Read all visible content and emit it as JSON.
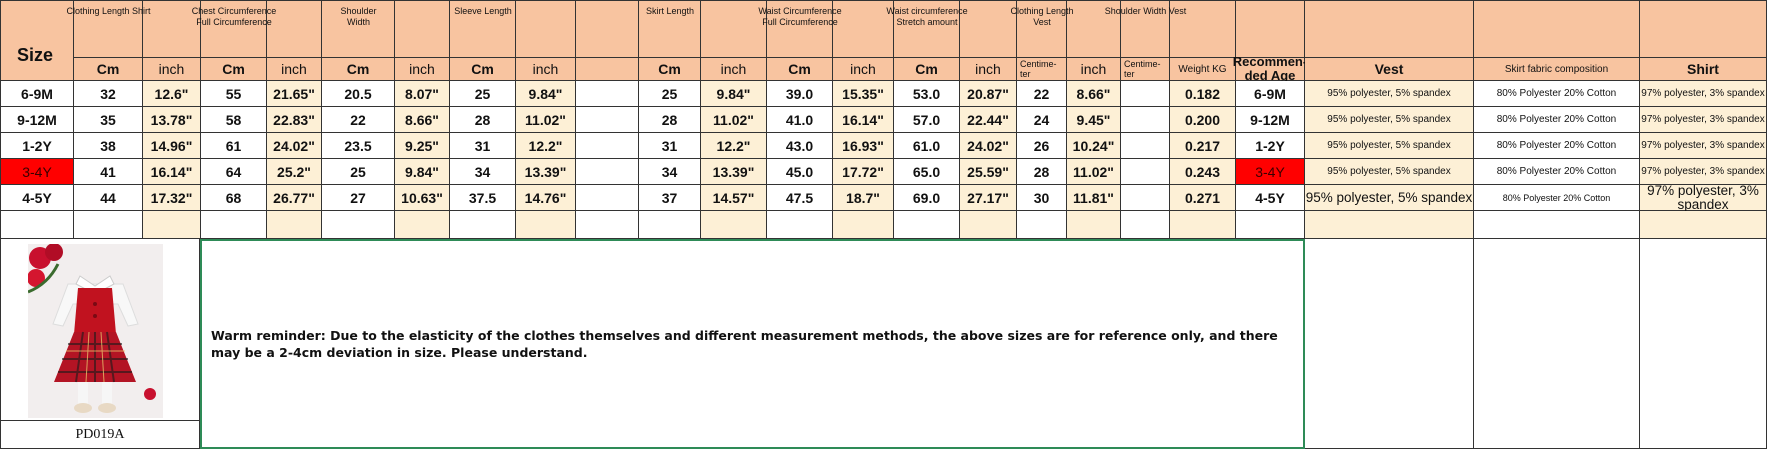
{
  "header": {
    "size": "Size",
    "groups": [
      null,
      [
        "Clothing Length Shirt"
      ],
      null,
      [
        "Chest Circumference",
        "Full Circumference"
      ],
      null,
      [
        "Shoulder",
        "Width"
      ],
      null,
      [
        "Sleeve Length"
      ],
      null,
      null,
      [
        "Skirt Length"
      ],
      null,
      [
        "Waist Circumference",
        "Full Circumference"
      ],
      null,
      [
        "Waist circumference",
        "Stretch amount"
      ],
      null,
      [
        "Clothing Length",
        "Vest"
      ],
      null,
      [
        "Shoulder Width Vest"
      ],
      null,
      null,
      null,
      null,
      null
    ],
    "units": [
      null,
      "Cm",
      "inch",
      "Cm",
      "inch",
      "Cm",
      "inch",
      "Cm",
      "inch",
      null,
      "Cm",
      "inch",
      "Cm",
      "inch",
      "Cm",
      "inch",
      "Centime-ter",
      "inch",
      "Centime-ter",
      "Weight KG",
      "Recommen-ded Age",
      "Vest",
      "Skirt fabric composition",
      "Shirt"
    ]
  },
  "table": {
    "rows": [
      [
        "6-9M",
        "32",
        "12.6\"",
        "55",
        "21.65\"",
        "20.5",
        "8.07\"",
        "25",
        "9.84\"",
        null,
        "25",
        "9.84\"",
        "39.0",
        "15.35\"",
        "53.0",
        "20.87\"",
        "22",
        "8.66\"",
        null,
        "0.182",
        "6-9M",
        "95% polyester, 5% spandex",
        "80% Polyester 20% Cotton",
        "97% polyester, 3% spandex"
      ],
      [
        "9-12M",
        "35",
        "13.78\"",
        "58",
        "22.83\"",
        "22",
        "8.66\"",
        "28",
        "11.02\"",
        null,
        "28",
        "11.02\"",
        "41.0",
        "16.14\"",
        "57.0",
        "22.44\"",
        "24",
        "9.45\"",
        null,
        "0.200",
        "9-12M",
        "95% polyester, 5% spandex",
        "80% Polyester 20% Cotton",
        "97% polyester, 3% spandex"
      ],
      [
        "1-2Y",
        "38",
        "14.96\"",
        "61",
        "24.02\"",
        "23.5",
        "9.25\"",
        "31",
        "12.2\"",
        null,
        "31",
        "12.2\"",
        "43.0",
        "16.93\"",
        "61.0",
        "24.02\"",
        "26",
        "10.24\"",
        null,
        "0.217",
        "1-2Y",
        "95% polyester, 5% spandex",
        "80% Polyester 20% Cotton",
        "97% polyester, 3% spandex"
      ],
      [
        "3-4Y",
        "41",
        "16.14\"",
        "64",
        "25.2\"",
        "25",
        "9.84\"",
        "34",
        "13.39\"",
        null,
        "34",
        "13.39\"",
        "45.0",
        "17.72\"",
        "65.0",
        "25.59\"",
        "28",
        "11.02\"",
        null,
        "0.243",
        "3-4Y",
        "95% polyester, 5% spandex",
        "80% Polyester 20% Cotton",
        "97% polyester, 3% spandex"
      ],
      [
        "4-5Y",
        "44",
        "17.32\"",
        "68",
        "26.77\"",
        "27",
        "10.63\"",
        "37.5",
        "14.76\"",
        null,
        "37",
        "14.57\"",
        "47.5",
        "18.7\"",
        "69.0",
        "27.17\"",
        "30",
        "11.81\"",
        null,
        "0.271",
        "4-5Y",
        "95% polyester, 5% spandex",
        "80% Polyester 20% Cotton",
        "97% polyester, 3% spandex"
      ]
    ]
  },
  "product_code": "PD019A",
  "reminder": "Warm reminder: Due to the elasticity of the clothes themselves and different measurement methods, the above sizes are for reference only, and there may be a 2-4cm deviation in size. Please understand."
}
